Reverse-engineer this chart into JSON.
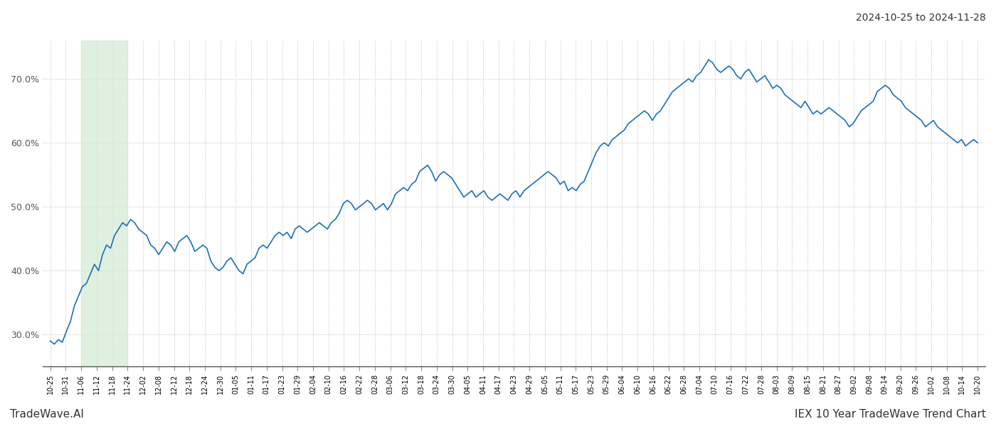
{
  "title_top_right": "2024-10-25 to 2024-11-28",
  "footer_left": "TradeWave.AI",
  "footer_right": "IEX 10 Year TradeWave Trend Chart",
  "line_color": "#1a6fbd",
  "green_shade_color": "#d4ead4",
  "green_shade_alpha": 0.7,
  "green_shade_start_label": "11-06",
  "green_shade_end_label": "11-24",
  "background_color": "#ffffff",
  "grid_color": "#bbbbbb",
  "grid_style": ":",
  "ylim": [
    25.0,
    76.0
  ],
  "yticks": [
    30,
    40,
    50,
    60,
    70
  ],
  "ytick_labels": [
    "30.0%",
    "40.0%",
    "50.0%",
    "60.0%",
    "70.0%"
  ],
  "x_labels": [
    "10-25",
    "10-31",
    "11-06",
    "11-12",
    "11-18",
    "11-24",
    "12-02",
    "12-08",
    "12-12",
    "12-18",
    "12-24",
    "12-30",
    "01-05",
    "01-11",
    "01-17",
    "01-23",
    "01-29",
    "02-04",
    "02-10",
    "02-16",
    "02-22",
    "02-28",
    "03-06",
    "03-12",
    "03-18",
    "03-24",
    "03-30",
    "04-05",
    "04-11",
    "04-17",
    "04-23",
    "04-29",
    "05-05",
    "05-11",
    "05-17",
    "05-23",
    "05-29",
    "06-04",
    "06-10",
    "06-16",
    "06-22",
    "06-28",
    "07-04",
    "07-10",
    "07-16",
    "07-22",
    "07-28",
    "08-03",
    "08-09",
    "08-15",
    "08-21",
    "08-27",
    "09-02",
    "09-08",
    "09-14",
    "09-20",
    "09-26",
    "10-02",
    "10-08",
    "10-14",
    "10-20"
  ],
  "values": [
    29.0,
    28.5,
    29.2,
    28.8,
    30.5,
    32.0,
    34.5,
    36.0,
    37.5,
    38.0,
    39.5,
    41.0,
    40.0,
    42.5,
    44.0,
    43.5,
    45.5,
    46.5,
    47.5,
    47.0,
    48.0,
    47.5,
    46.5,
    46.0,
    45.5,
    44.0,
    43.5,
    42.5,
    43.5,
    44.5,
    44.0,
    43.0,
    44.5,
    45.0,
    45.5,
    44.5,
    43.0,
    43.5,
    44.0,
    43.5,
    41.5,
    40.5,
    40.0,
    40.5,
    41.5,
    42.0,
    41.0,
    40.0,
    39.5,
    41.0,
    41.5,
    42.0,
    43.5,
    44.0,
    43.5,
    44.5,
    45.5,
    46.0,
    45.5,
    46.0,
    45.0,
    46.5,
    47.0,
    46.5,
    46.0,
    46.5,
    47.0,
    47.5,
    47.0,
    46.5,
    47.5,
    48.0,
    49.0,
    50.5,
    51.0,
    50.5,
    49.5,
    50.0,
    50.5,
    51.0,
    50.5,
    49.5,
    50.0,
    50.5,
    49.5,
    50.5,
    52.0,
    52.5,
    53.0,
    52.5,
    53.5,
    54.0,
    55.5,
    56.0,
    56.5,
    55.5,
    54.0,
    55.0,
    55.5,
    55.0,
    54.5,
    53.5,
    52.5,
    51.5,
    52.0,
    52.5,
    51.5,
    52.0,
    52.5,
    51.5,
    51.0,
    51.5,
    52.0,
    51.5,
    51.0,
    52.0,
    52.5,
    51.5,
    52.5,
    53.0,
    53.5,
    54.0,
    54.5,
    55.0,
    55.5,
    55.0,
    54.5,
    53.5,
    54.0,
    52.5,
    53.0,
    52.5,
    53.5,
    54.0,
    55.5,
    57.0,
    58.5,
    59.5,
    60.0,
    59.5,
    60.5,
    61.0,
    61.5,
    62.0,
    63.0,
    63.5,
    64.0,
    64.5,
    65.0,
    64.5,
    63.5,
    64.5,
    65.0,
    66.0,
    67.0,
    68.0,
    68.5,
    69.0,
    69.5,
    70.0,
    69.5,
    70.5,
    71.0,
    72.0,
    73.0,
    72.5,
    71.5,
    71.0,
    71.5,
    72.0,
    71.5,
    70.5,
    70.0,
    71.0,
    71.5,
    70.5,
    69.5,
    70.0,
    70.5,
    69.5,
    68.5,
    69.0,
    68.5,
    67.5,
    67.0,
    66.5,
    66.0,
    65.5,
    66.5,
    65.5,
    64.5,
    65.0,
    64.5,
    65.0,
    65.5,
    65.0,
    64.5,
    64.0,
    63.5,
    62.5,
    63.0,
    64.0,
    65.0,
    65.5,
    66.0,
    66.5,
    68.0,
    68.5,
    69.0,
    68.5,
    67.5,
    67.0,
    66.5,
    65.5,
    65.0,
    64.5,
    64.0,
    63.5,
    62.5,
    63.0,
    63.5,
    62.5,
    62.0,
    61.5,
    61.0,
    60.5,
    60.0,
    60.5,
    59.5,
    60.0,
    60.5,
    60.0
  ]
}
